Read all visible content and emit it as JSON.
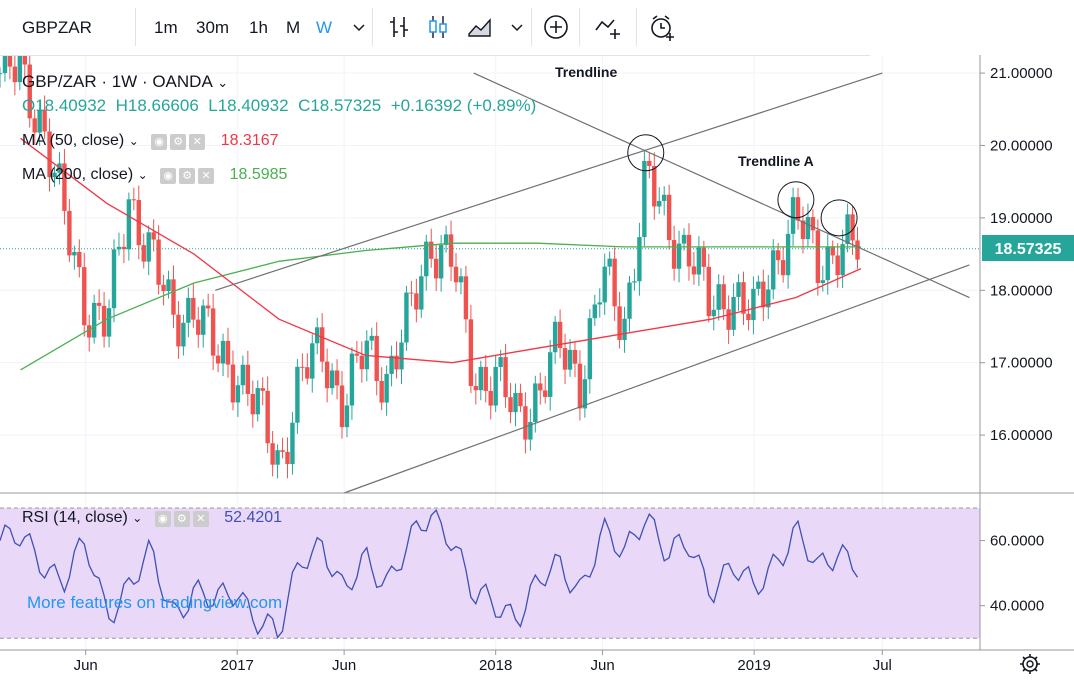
{
  "toolbar": {
    "symbol": "GBPZAR",
    "timeframes": [
      "1m",
      "30m",
      "1h",
      "M",
      "W"
    ],
    "active_timeframe": "W"
  },
  "legend": {
    "title": "GBP/ZAR · 1W · OANDA",
    "ohlc": {
      "o": "O18.40932",
      "h": "H18.66606",
      "l": "L18.40932",
      "c": "C18.57325",
      "chg": "+0.16392 (+0.89%)"
    },
    "ma50": {
      "label": "MA (50, close)",
      "value": "18.3167",
      "color": "#f23645"
    },
    "ma200": {
      "label": "MA (200, close)",
      "value": "18.5985",
      "color": "#4caf50"
    },
    "rsi": {
      "label": "RSI (14, close)",
      "value": "52.4201",
      "color": "#3f51b5"
    }
  },
  "annotations": {
    "trendline": "Trendline",
    "trendline_a": "Trendline A",
    "watermark": "More features on tradingview.com"
  },
  "colors": {
    "up": "#26a69a",
    "down": "#ef5350",
    "rsi_band": "#e9d8f7",
    "channel": "#707070"
  },
  "chart_data": [
    {
      "type": "candlestick",
      "title": "GBP/ZAR · 1W · OANDA",
      "x_ticks": [
        "Jun",
        "2017",
        "Jun",
        "2018",
        "Jun",
        "2019",
        "Jul"
      ],
      "y_ticks": [
        "21.00000",
        "20.00000",
        "19.00000",
        "18.00000",
        "17.00000",
        "16.00000"
      ],
      "ylim": [
        15.2,
        21.25
      ],
      "last_price": "18.57325",
      "close_path": [
        {
          "t": "2016-03",
          "v": 21.0
        },
        {
          "t": "2016-04",
          "v": 20.3
        },
        {
          "t": "2016-05",
          "v": 19.0
        },
        {
          "t": "2016-06",
          "v": 17.8
        },
        {
          "t": "2016-07",
          "v": 17.5
        },
        {
          "t": "2016-08",
          "v": 19.3
        },
        {
          "t": "2016-09",
          "v": 18.5
        },
        {
          "t": "2016-10",
          "v": 17.6
        },
        {
          "t": "2016-11",
          "v": 17.8
        },
        {
          "t": "2016-12",
          "v": 17.1
        },
        {
          "t": "2017-01",
          "v": 16.9
        },
        {
          "t": "2017-02",
          "v": 16.3
        },
        {
          "t": "2017-03",
          "v": 15.6
        },
        {
          "t": "2017-04",
          "v": 16.8
        },
        {
          "t": "2017-05",
          "v": 17.2
        },
        {
          "t": "2017-06",
          "v": 16.4
        },
        {
          "t": "2017-07",
          "v": 17.2
        },
        {
          "t": "2017-08",
          "v": 16.8
        },
        {
          "t": "2017-09",
          "v": 17.6
        },
        {
          "t": "2017-10",
          "v": 18.7
        },
        {
          "t": "2017-11",
          "v": 18.4
        },
        {
          "t": "2017-12",
          "v": 16.8
        },
        {
          "t": "2018-01",
          "v": 16.8
        },
        {
          "t": "2018-02",
          "v": 16.2
        },
        {
          "t": "2018-03",
          "v": 16.6
        },
        {
          "t": "2018-04",
          "v": 17.2
        },
        {
          "t": "2018-05",
          "v": 16.8
        },
        {
          "t": "2018-06",
          "v": 18.2
        },
        {
          "t": "2018-07",
          "v": 17.5
        },
        {
          "t": "2018-08",
          "v": 19.6
        },
        {
          "t": "2018-09",
          "v": 18.8
        },
        {
          "t": "2018-10",
          "v": 18.6
        },
        {
          "t": "2018-11",
          "v": 17.7
        },
        {
          "t": "2018-12",
          "v": 18.0
        },
        {
          "t": "2019-01",
          "v": 17.6
        },
        {
          "t": "2019-02",
          "v": 18.5
        },
        {
          "t": "2019-03",
          "v": 19.0
        },
        {
          "t": "2019-04",
          "v": 18.4
        },
        {
          "t": "2019-05",
          "v": 18.6
        },
        {
          "t": "2019-06",
          "v": 18.57
        }
      ],
      "series": [
        {
          "name": "MA (50, close)",
          "points": [
            {
              "t": "2016-03",
              "v": 20.1
            },
            {
              "t": "2016-07",
              "v": 19.2
            },
            {
              "t": "2016-11",
              "v": 18.5
            },
            {
              "t": "2017-03",
              "v": 17.6
            },
            {
              "t": "2017-07",
              "v": 17.1
            },
            {
              "t": "2017-11",
              "v": 17.0
            },
            {
              "t": "2018-03",
              "v": 17.2
            },
            {
              "t": "2018-07",
              "v": 17.4
            },
            {
              "t": "2018-11",
              "v": 17.6
            },
            {
              "t": "2019-03",
              "v": 17.9
            },
            {
              "t": "2019-06",
              "v": 18.3
            }
          ]
        },
        {
          "name": "MA (200, close)",
          "points": [
            {
              "t": "2016-03",
              "v": 16.9
            },
            {
              "t": "2016-07",
              "v": 17.6
            },
            {
              "t": "2016-11",
              "v": 18.1
            },
            {
              "t": "2017-03",
              "v": 18.4
            },
            {
              "t": "2017-07",
              "v": 18.55
            },
            {
              "t": "2017-11",
              "v": 18.65
            },
            {
              "t": "2018-03",
              "v": 18.65
            },
            {
              "t": "2018-07",
              "v": 18.6
            },
            {
              "t": "2018-11",
              "v": 18.6
            },
            {
              "t": "2019-03",
              "v": 18.6
            },
            {
              "t": "2019-06",
              "v": 18.6
            }
          ]
        }
      ],
      "trendlines": [
        {
          "name": "Trendline",
          "from": {
            "t": "2016-12",
            "v": 18.0
          },
          "to": {
            "t": "2019-07",
            "v": 21.0
          }
        },
        {
          "name": "Trendline",
          "from": {
            "t": "2017-06",
            "v": 15.2
          },
          "to": {
            "t": "2019-11",
            "v": 18.35
          }
        },
        {
          "name": "Trendline A",
          "from": {
            "t": "2017-12",
            "v": 21.0
          },
          "to": {
            "t": "2019-11",
            "v": 17.9
          }
        }
      ]
    },
    {
      "type": "line",
      "title": "RSI (14, close)",
      "y_ticks": [
        "60.0000",
        "40.0000"
      ],
      "ylim": [
        27,
        74
      ],
      "band": [
        30,
        70
      ],
      "last_value": "52.4201",
      "series": [
        {
          "name": "RSI (14, close)",
          "points": [
            {
              "t": "2016-03",
              "v": 60
            },
            {
              "t": "2016-05",
              "v": 48
            },
            {
              "t": "2016-06",
              "v": 58
            },
            {
              "t": "2016-07",
              "v": 38
            },
            {
              "t": "2016-09",
              "v": 55
            },
            {
              "t": "2016-10",
              "v": 38
            },
            {
              "t": "2016-11",
              "v": 45
            },
            {
              "t": "2016-12",
              "v": 40
            },
            {
              "t": "2017-01",
              "v": 45
            },
            {
              "t": "2017-02",
              "v": 36
            },
            {
              "t": "2017-03",
              "v": 30
            },
            {
              "t": "2017-04",
              "v": 55
            },
            {
              "t": "2017-05",
              "v": 60
            },
            {
              "t": "2017-06",
              "v": 42
            },
            {
              "t": "2017-07",
              "v": 55
            },
            {
              "t": "2017-08",
              "v": 48
            },
            {
              "t": "2017-09",
              "v": 58
            },
            {
              "t": "2017-10",
              "v": 68
            },
            {
              "t": "2017-11",
              "v": 62
            },
            {
              "t": "2017-12",
              "v": 42
            },
            {
              "t": "2018-01",
              "v": 40
            },
            {
              "t": "2018-02",
              "v": 38
            },
            {
              "t": "2018-03",
              "v": 46
            },
            {
              "t": "2018-04",
              "v": 52
            },
            {
              "t": "2018-05",
              "v": 46
            },
            {
              "t": "2018-06",
              "v": 62
            },
            {
              "t": "2018-07",
              "v": 55
            },
            {
              "t": "2018-08",
              "v": 70
            },
            {
              "t": "2018-09",
              "v": 55
            },
            {
              "t": "2018-10",
              "v": 58
            },
            {
              "t": "2018-11",
              "v": 46
            },
            {
              "t": "2018-12",
              "v": 52
            },
            {
              "t": "2019-01",
              "v": 44
            },
            {
              "t": "2019-02",
              "v": 55
            },
            {
              "t": "2019-03",
              "v": 63
            },
            {
              "t": "2019-04",
              "v": 50
            },
            {
              "t": "2019-05",
              "v": 58
            },
            {
              "t": "2019-06",
              "v": 52.42
            }
          ]
        }
      ]
    }
  ]
}
